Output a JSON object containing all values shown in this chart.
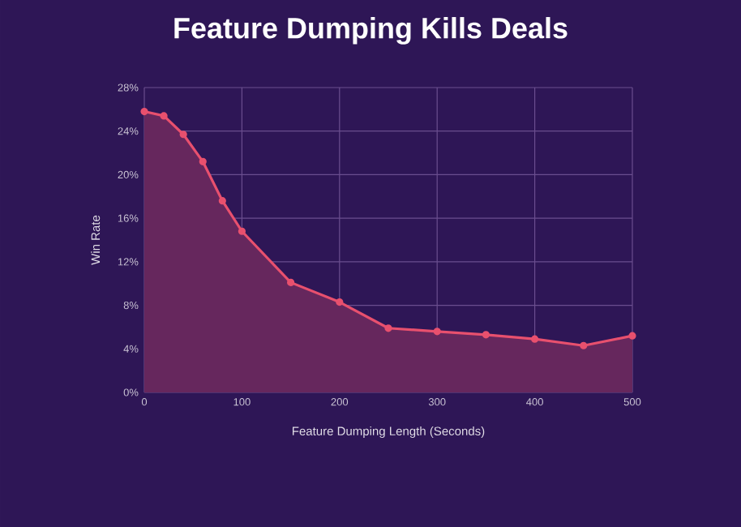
{
  "chart_data": {
    "type": "area",
    "title": "Feature Dumping Kills Deals",
    "xlabel": "Feature Dumping Length (Seconds)",
    "ylabel": "Win Rate",
    "x": [
      0,
      20,
      40,
      60,
      80,
      100,
      150,
      200,
      250,
      300,
      350,
      400,
      450,
      500
    ],
    "series": [
      {
        "color": "#e8506e",
        "values": [
          25.8,
          25.4,
          23.7,
          21.2,
          17.6,
          14.8,
          10.1,
          8.3,
          5.9,
          5.6,
          5.3,
          4.9,
          4.3,
          5.2
        ]
      }
    ],
    "xlim": [
      0,
      500
    ],
    "xticks": [
      0,
      100,
      200,
      300,
      400,
      500
    ],
    "ylim": [
      0,
      28
    ],
    "yticks": [
      {
        "value": 0,
        "label": "0%"
      },
      {
        "value": 4,
        "label": "4%"
      },
      {
        "value": 8,
        "label": "8%"
      },
      {
        "value": 12,
        "label": "12%"
      },
      {
        "value": 16,
        "label": "16%"
      },
      {
        "value": 20,
        "label": "20%"
      },
      {
        "value": 24,
        "label": "24%"
      },
      {
        "value": 28,
        "label": "28%"
      }
    ],
    "grid": true,
    "marker": "circle",
    "line_style": "solid"
  }
}
